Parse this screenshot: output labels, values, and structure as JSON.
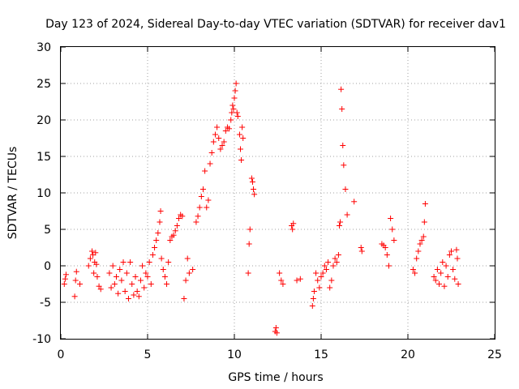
{
  "chart_data": {
    "type": "scatter",
    "title": "Day 123 of 2024, Sidereal Day-to-day VTEC variation (SDTVAR) for receiver dav1",
    "xlabel": "GPS time / hours",
    "ylabel": "SDTVAR / TECUs",
    "xlim": [
      0,
      25
    ],
    "ylim": [
      -10,
      30
    ],
    "xticks": [
      0,
      5,
      10,
      15,
      20,
      25
    ],
    "yticks": [
      -10,
      -5,
      0,
      5,
      10,
      15,
      20,
      25,
      30
    ],
    "xtick_labels": [
      "0",
      "5",
      "10",
      "15",
      "20",
      "25"
    ],
    "ytick_labels": [
      "-10",
      "-5",
      "0",
      "5",
      "10",
      "15",
      "20",
      "25",
      "30"
    ],
    "grid": true,
    "marker": "+",
    "color": "#ff0000",
    "series": [
      {
        "name": "SDTVAR",
        "x": [
          0.2,
          0.25,
          0.3,
          0.8,
          0.85,
          0.9,
          1.1,
          1.6,
          1.7,
          1.8,
          1.85,
          1.9,
          1.95,
          2.0,
          2.05,
          2.1,
          2.2,
          2.3,
          2.8,
          2.9,
          3.0,
          3.1,
          3.2,
          3.3,
          3.4,
          3.5,
          3.6,
          3.7,
          3.8,
          3.9,
          4.0,
          4.1,
          4.2,
          4.3,
          4.4,
          4.5,
          4.6,
          4.7,
          4.8,
          4.9,
          5.0,
          5.1,
          5.2,
          5.3,
          5.4,
          5.5,
          5.6,
          5.7,
          5.75,
          5.8,
          5.9,
          6.0,
          6.1,
          6.2,
          6.3,
          6.4,
          6.5,
          6.6,
          6.7,
          6.8,
          6.9,
          7.0,
          7.1,
          7.2,
          7.3,
          7.4,
          7.6,
          7.8,
          7.9,
          8.0,
          8.1,
          8.2,
          8.3,
          8.4,
          8.5,
          8.6,
          8.7,
          8.8,
          8.9,
          9.0,
          9.1,
          9.2,
          9.3,
          9.4,
          9.5,
          9.6,
          9.7,
          9.8,
          9.85,
          9.9,
          9.95,
          10.0,
          10.05,
          10.1,
          10.15,
          10.2,
          10.3,
          10.35,
          10.4,
          10.45,
          10.5,
          10.8,
          10.85,
          10.9,
          11.0,
          11.05,
          11.1,
          11.15,
          12.35,
          12.4,
          12.45,
          12.6,
          12.7,
          12.8,
          13.3,
          13.35,
          13.4,
          13.6,
          13.8,
          14.5,
          14.55,
          14.6,
          14.7,
          14.8,
          14.9,
          15.0,
          15.1,
          15.2,
          15.3,
          15.4,
          15.5,
          15.6,
          15.7,
          15.8,
          15.9,
          16.0,
          16.05,
          16.1,
          16.15,
          16.2,
          16.25,
          16.3,
          16.4,
          16.5,
          16.9,
          17.3,
          17.35,
          18.5,
          18.6,
          18.7,
          18.8,
          18.9,
          19.0,
          19.1,
          19.2,
          20.3,
          20.4,
          20.5,
          20.6,
          20.7,
          20.8,
          20.9,
          20.95,
          21.0,
          21.5,
          21.6,
          21.7,
          21.8,
          21.9,
          22.0,
          22.1,
          22.2,
          22.3,
          22.4,
          22.5,
          22.6,
          22.7,
          22.8,
          22.85,
          22.9
        ],
        "y": [
          -2.5,
          -1.8,
          -1.2,
          -4.2,
          -2.0,
          -0.8,
          -2.5,
          0.0,
          1.0,
          2.0,
          1.5,
          -1.0,
          0.5,
          1.8,
          0.2,
          -1.5,
          -2.8,
          -3.2,
          -1.0,
          -3.0,
          0.0,
          -2.5,
          -1.5,
          -3.8,
          -0.5,
          -2.0,
          0.5,
          -3.5,
          -1.0,
          -4.5,
          0.5,
          -2.5,
          -4.0,
          -1.5,
          -3.5,
          -4.2,
          -2.0,
          0.0,
          -3.0,
          -1.0,
          -1.5,
          0.5,
          -2.5,
          1.5,
          2.5,
          3.5,
          4.5,
          6.0,
          7.5,
          1.0,
          -0.5,
          -1.5,
          -2.5,
          0.5,
          3.5,
          4.0,
          4.2,
          4.8,
          5.5,
          6.5,
          7.0,
          6.8,
          -4.5,
          -2.0,
          1.0,
          -1.0,
          -0.5,
          6.0,
          6.8,
          8.0,
          9.5,
          10.5,
          13.0,
          8.0,
          9.0,
          14.0,
          15.5,
          17.0,
          18.0,
          19.0,
          17.5,
          16.0,
          16.5,
          17.0,
          18.5,
          19.0,
          18.8,
          20.0,
          21.0,
          22.0,
          21.5,
          23.0,
          24.0,
          25.0,
          21.0,
          20.5,
          18.0,
          16.0,
          14.5,
          19.0,
          17.5,
          -1.0,
          3.0,
          5.0,
          12.0,
          11.5,
          10.5,
          9.8,
          -9.0,
          -8.5,
          -9.2,
          -1.0,
          -2.0,
          -2.5,
          5.5,
          5.0,
          5.8,
          -2.0,
          -1.8,
          -5.5,
          -4.5,
          -3.5,
          -1.0,
          -2.0,
          -3.0,
          -1.5,
          -1.0,
          0.0,
          -0.5,
          0.5,
          -3.0,
          -2.0,
          0.0,
          1.0,
          0.5,
          1.5,
          5.5,
          6.0,
          24.2,
          21.5,
          16.5,
          13.8,
          10.5,
          7.0,
          8.8,
          2.5,
          2.0,
          3.0,
          2.8,
          2.5,
          1.5,
          0.0,
          6.5,
          5.0,
          3.5,
          -0.5,
          -1.0,
          1.0,
          2.0,
          3.0,
          3.5,
          4.0,
          6.0,
          8.5,
          -1.5,
          -2.0,
          -0.5,
          -2.5,
          -1.0,
          0.5,
          -2.8,
          0.0,
          -1.5,
          1.5,
          2.0,
          -0.5,
          -1.8,
          2.2,
          1.0,
          -2.5
        ]
      }
    ]
  }
}
